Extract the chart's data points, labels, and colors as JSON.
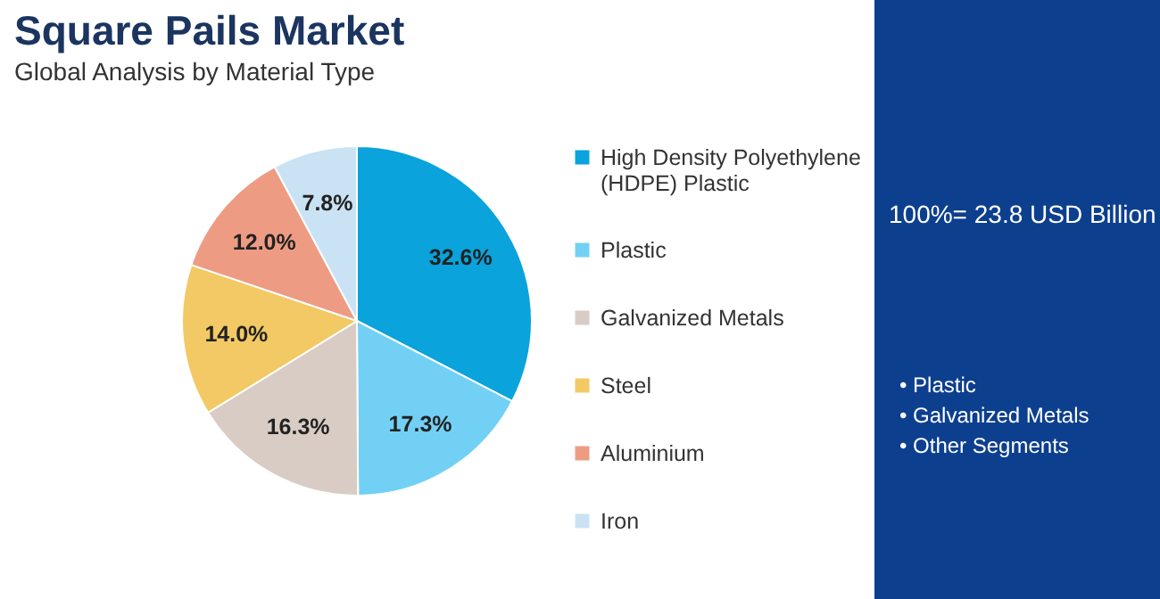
{
  "chart_data": {
    "type": "pie",
    "title": "Square Pails Market",
    "subtitle": "Global Analysis by Material Type",
    "categories": [
      "High Density Polyethylene (HDPE) Plastic",
      "Plastic",
      "Galvanized Metals",
      "Steel",
      "Aluminium",
      "Iron"
    ],
    "values": [
      32.6,
      17.3,
      16.3,
      14.0,
      12.0,
      7.8
    ],
    "colors": [
      "#0aa3db",
      "#72d0f4",
      "#d8ccc4",
      "#f2c964",
      "#ee9b83",
      "#c9e3f4"
    ],
    "value_labels": [
      "32.6%",
      "17.3%",
      "16.3%",
      "14.0%",
      "12.0%",
      "7.8%"
    ],
    "legend": "right",
    "annotations": [
      "100%= 23.8 USD Billion",
      "• Plastic",
      "• Galvanized Metals",
      "• Other Segments"
    ]
  }
}
